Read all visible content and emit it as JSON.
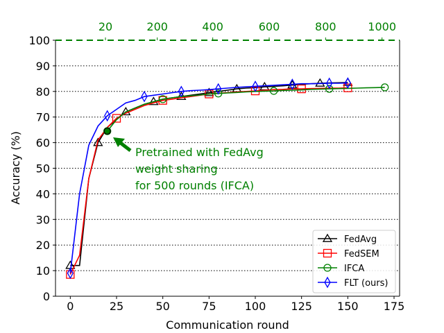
{
  "chart_data": {
    "type": "line",
    "xlabel": "Communication round",
    "ylabel": "Accuracy (%)",
    "xlim": [
      -8,
      178
    ],
    "ylim": [
      0,
      100
    ],
    "xticks": [
      0,
      25,
      50,
      75,
      100,
      125,
      150,
      175
    ],
    "yticks": [
      0,
      10,
      20,
      30,
      40,
      50,
      60,
      70,
      80,
      90,
      100
    ],
    "top_axis": {
      "ticks": [
        {
          "label": "20",
          "at_x": 19
        },
        {
          "label": "200",
          "at_x": 47
        },
        {
          "label": "400",
          "at_x": 77
        },
        {
          "label": "600",
          "at_x": 107.5
        },
        {
          "label": "800",
          "at_x": 138
        },
        {
          "label": "1000",
          "at_x": 168.5
        }
      ],
      "color": "#008000",
      "dashed_line_at_y": 100
    },
    "grid": {
      "horizontal": "dotted",
      "vertical": false
    },
    "legend_position": "lower-right",
    "series": [
      {
        "name": "FedAvg",
        "color": "#000000",
        "marker": "triangle",
        "x": [
          0,
          5,
          10,
          15,
          20,
          25,
          30,
          35,
          40,
          45,
          50,
          55,
          60,
          65,
          70,
          75,
          80,
          85,
          90,
          95,
          100,
          105,
          110,
          115,
          120,
          125,
          130,
          135,
          140,
          145,
          150
        ],
        "y": [
          12,
          12,
          46,
          60,
          66,
          69,
          72,
          73.5,
          75,
          76,
          77,
          77.5,
          78,
          78.5,
          79,
          79.5,
          80,
          80.5,
          81,
          81.3,
          81.5,
          81.8,
          82,
          82.2,
          82.5,
          82.8,
          83,
          83.2,
          83.3,
          83.4,
          83.5
        ],
        "markers_at": [
          0,
          15,
          30,
          45,
          60,
          75,
          90,
          105,
          120,
          135,
          150
        ]
      },
      {
        "name": "FedSEM",
        "color": "#ff0000",
        "marker": "square",
        "x": [
          0,
          5,
          10,
          15,
          20,
          25,
          30,
          35,
          40,
          45,
          50,
          55,
          60,
          65,
          70,
          75,
          80,
          85,
          90,
          95,
          100,
          105,
          110,
          115,
          120,
          125,
          130,
          135,
          140,
          145,
          150
        ],
        "y": [
          8.5,
          16,
          46,
          61,
          66,
          69.5,
          71.5,
          73,
          74.5,
          75.5,
          76.5,
          77,
          77.5,
          78,
          78.5,
          79,
          79.3,
          79.5,
          79.8,
          80,
          80.2,
          80.5,
          80.7,
          80.8,
          81,
          81,
          81.1,
          81.2,
          81.3,
          81.3,
          81.4
        ],
        "markers_at": [
          0,
          25,
          50,
          75,
          100,
          125,
          150
        ]
      },
      {
        "name": "IFCA",
        "color": "#008000",
        "marker": "circle",
        "x": [
          20,
          25,
          30,
          35,
          40,
          45,
          50,
          55,
          60,
          65,
          70,
          75,
          80,
          85,
          90,
          95,
          100,
          105,
          110,
          115,
          120,
          125,
          130,
          135,
          140,
          145,
          150,
          155,
          160,
          165,
          170
        ],
        "y": [
          64.5,
          69,
          72,
          73.5,
          75,
          76,
          77,
          77.5,
          78,
          78.3,
          78.6,
          79,
          79.2,
          79.4,
          79.6,
          79.8,
          80,
          80.1,
          80.2,
          80.4,
          80.5,
          80.6,
          80.8,
          80.9,
          81,
          81.1,
          81.2,
          81.3,
          81.4,
          81.5,
          81.6
        ],
        "markers_at": [
          20,
          50,
          80,
          110,
          140,
          170
        ]
      },
      {
        "name": "FLT (ours)",
        "color": "#0000ff",
        "marker": "diamond",
        "x": [
          0,
          5,
          10,
          15,
          20,
          25,
          30,
          35,
          40,
          45,
          50,
          55,
          60,
          65,
          70,
          75,
          80,
          85,
          90,
          95,
          100,
          105,
          110,
          115,
          120,
          125,
          130,
          135,
          140,
          145,
          150
        ],
        "y": [
          9,
          40,
          59,
          66.5,
          70.5,
          73,
          75.5,
          76.5,
          78,
          78.5,
          79,
          79.5,
          80,
          80.3,
          80.5,
          80.7,
          81,
          81.3,
          81.6,
          81.8,
          82,
          82.2,
          82.4,
          82.6,
          82.8,
          83,
          83,
          83.1,
          83.2,
          83.2,
          83.3
        ],
        "markers_at": [
          0,
          20,
          40,
          60,
          80,
          100,
          120,
          140,
          150
        ]
      }
    ],
    "annotation": {
      "lines": [
        "Pretrained with FedAvg",
        "weight sharing",
        "for 500 rounds (IFCA)"
      ],
      "color": "#008000",
      "point": {
        "x": 20,
        "y": 64.5
      }
    }
  }
}
